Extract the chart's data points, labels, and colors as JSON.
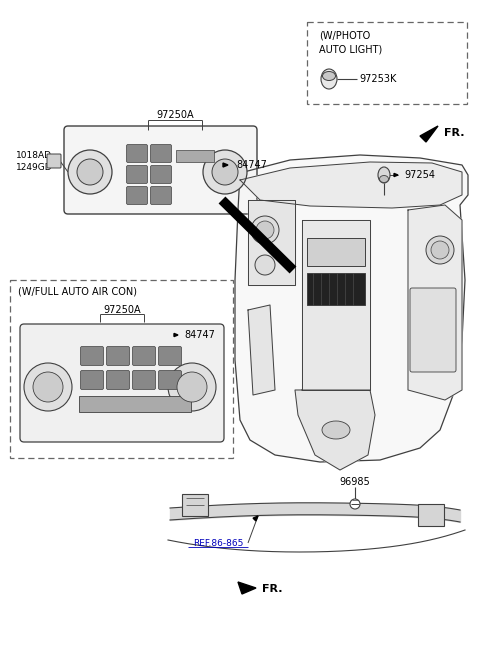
{
  "bg_color": "#ffffff",
  "lc": "#404040",
  "tc": "#000000",
  "fig_w": 4.8,
  "fig_h": 6.56,
  "dpi": 100,
  "labels": {
    "97250A_top": "97250A",
    "84747_top": "84747",
    "1018AD": "1018AD",
    "1249GD": "1249GD",
    "w_full_auto": "(W/FULL AUTO AIR CON)",
    "97250A_box": "97250A",
    "84747_box": "84747",
    "w_photo_line1": "(W/PHOTO",
    "w_photo_line2": "AUTO LIGHT)",
    "97253K": "97253K",
    "97254": "97254",
    "FR_top": "FR.",
    "96985": "96985",
    "ref_86_865": "REF.86-865",
    "FR_bot": "FR."
  }
}
